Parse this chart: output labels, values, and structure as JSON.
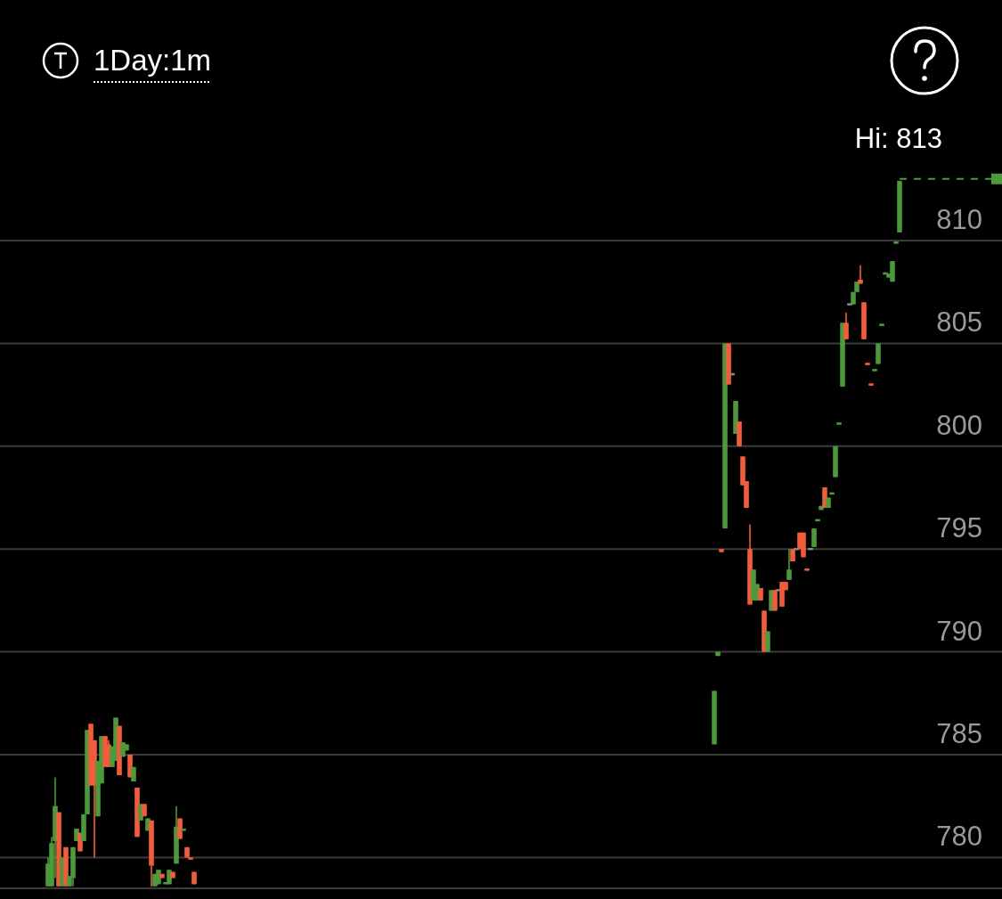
{
  "chart_data": {
    "type": "candlestick",
    "title": "1Day:1m",
    "ylim": [
      778.5,
      821.7
    ],
    "yticks": [
      780,
      785,
      790,
      795,
      800,
      805,
      810
    ],
    "grid": "y",
    "ref_lines": [
      {
        "axis": "y",
        "value": 813,
        "label": "Hi: 813",
        "color": "#4c9a3c",
        "line_style": "dashed"
      }
    ],
    "categories": [
      null,
      null,
      null,
      null,
      null,
      null,
      null,
      null,
      null,
      null,
      null,
      null,
      null,
      null,
      null,
      null,
      null,
      null,
      null,
      null,
      null,
      null,
      null,
      null,
      null,
      null,
      null,
      null,
      null,
      null,
      null,
      null,
      null,
      null,
      null,
      null,
      null,
      null,
      null,
      null,
      null,
      null,
      null,
      null,
      null,
      null,
      null,
      null,
      null,
      null,
      null,
      null,
      null,
      null,
      null,
      null,
      null,
      null,
      null,
      null,
      null,
      null,
      null,
      null,
      null,
      null,
      null,
      null,
      null,
      null,
      null,
      null,
      null,
      null,
      null,
      null,
      null,
      null,
      null,
      null,
      null,
      null,
      null,
      null,
      null,
      null,
      null,
      null,
      null,
      null,
      null,
      null,
      null,
      null,
      null,
      null,
      null,
      null,
      null,
      null,
      null,
      null,
      null,
      null,
      null,
      null,
      null,
      null,
      null,
      null,
      null,
      null,
      null,
      null,
      null,
      null,
      null,
      null,
      null,
      null,
      null,
      null,
      null,
      null,
      null,
      null,
      null,
      null,
      null,
      null,
      null,
      null,
      null,
      null,
      null,
      null,
      null,
      null,
      null,
      null,
      null,
      null,
      null,
      null,
      null,
      null,
      null,
      null,
      null,
      null,
      null,
      null,
      null,
      null,
      null,
      null,
      null,
      null,
      null,
      null,
      null,
      null,
      null,
      null,
      null,
      null,
      null,
      null,
      null,
      null,
      null,
      null,
      null,
      null,
      null,
      null,
      null,
      null,
      null,
      null,
      null,
      null,
      null,
      null,
      null,
      null,
      null,
      null,
      null,
      null,
      null,
      null,
      null,
      null,
      null,
      null,
      null,
      null,
      null,
      null,
      null,
      null,
      null,
      null,
      null,
      null,
      null,
      null,
      null,
      null,
      null,
      null,
      null,
      null,
      null,
      null,
      null,
      null,
      null,
      null,
      null,
      null,
      null,
      null,
      null,
      null,
      null,
      null,
      null,
      null,
      null,
      null,
      null,
      null,
      null,
      null,
      null,
      null,
      null,
      null,
      null,
      null,
      null,
      null,
      null,
      null,
      null,
      null,
      null,
      null,
      null,
      null,
      null,
      null,
      null,
      null,
      null,
      null,
      null,
      null,
      null,
      null,
      null,
      null,
      null,
      null,
      null,
      null,
      null,
      null,
      null,
      null,
      null,
      null,
      null,
      null,
      null,
      null,
      null,
      null,
      null
    ],
    "ohlc": [
      null,
      null,
      null,
      null,
      null,
      null,
      null,
      null,
      null,
      null,
      null,
      null,
      null,
      [
        778.6,
        780.0,
        778.6,
        779.7
      ],
      [
        778.6,
        781.0,
        778.6,
        780.7
      ],
      [
        780.8,
        783.9,
        779.0,
        782.5
      ],
      [
        782.2,
        782.2,
        778.6,
        778.6
      ],
      [
        778.6,
        780.0,
        778.6,
        780.0
      ],
      [
        780.5,
        780.5,
        778.6,
        778.6
      ],
      [
        778.6,
        779.1,
        778.6,
        779.1
      ],
      [
        779.0,
        780.5,
        778.6,
        780.5
      ],
      [
        780.8,
        781.4,
        780.8,
        781.4
      ],
      [
        781.2,
        781.2,
        780.3,
        780.3
      ],
      [
        780.8,
        782.1,
        780.8,
        782.1
      ],
      [
        782.1,
        786.2,
        782.1,
        786.2
      ],
      [
        786.5,
        786.5,
        783.5,
        783.5
      ],
      [
        785.7,
        785.7,
        780.0,
        783.5
      ],
      [
        782.0,
        784.7,
        782.0,
        784.7
      ],
      [
        783.6,
        785.9,
        783.6,
        785.9
      ],
      [
        785.9,
        785.9,
        784.4,
        784.4
      ],
      [
        785.5,
        785.7,
        784.4,
        784.4
      ],
      [
        784.4,
        785.4,
        784.4,
        785.4
      ],
      [
        784.7,
        786.8,
        784.7,
        786.8
      ],
      [
        786.4,
        786.4,
        784.0,
        784.0
      ],
      [
        784.9,
        785.6,
        784.9,
        785.6
      ],
      [
        785.2,
        785.5,
        785.2,
        785.5
      ],
      [
        785.0,
        785.0,
        783.9,
        783.9
      ],
      [
        783.7,
        784.4,
        783.7,
        784.4
      ],
      [
        783.4,
        783.4,
        781.0,
        781.0
      ],
      [
        781.8,
        782.6,
        781.8,
        782.6
      ],
      [
        782.6,
        782.6,
        782.0,
        782.0
      ],
      [
        781.3,
        781.9,
        781.3,
        781.9
      ],
      [
        781.8,
        781.8,
        778.6,
        779.6
      ],
      [
        778.6,
        779.2,
        778.6,
        779.2
      ],
      [
        778.7,
        779.4,
        778.7,
        779.4
      ],
      [
        779.2,
        779.2,
        779.0,
        779.0
      ],
      [
        778.7,
        778.8,
        778.7,
        778.8
      ],
      [
        778.7,
        779.4,
        778.7,
        779.4
      ],
      [
        779.3,
        779.3,
        779.0,
        779.0
      ],
      [
        779.7,
        782.5,
        779.7,
        781.5
      ],
      [
        781.9,
        781.9,
        780.9,
        780.9
      ],
      [
        781.3,
        781.4,
        781.3,
        781.4
      ],
      [
        780.5,
        780.5,
        780.0,
        780.0
      ],
      [
        780.0,
        780.0,
        779.9,
        779.9
      ],
      [
        779.3,
        779.3,
        778.7,
        778.7
      ],
      null,
      null,
      null,
      null,
      null,
      null,
      null,
      null,
      null,
      null,
      null,
      null,
      null,
      null,
      null,
      null,
      null,
      null,
      null,
      null,
      null,
      null,
      null,
      null,
      null,
      null,
      null,
      null,
      null,
      null,
      null,
      null,
      null,
      null,
      null,
      null,
      null,
      null,
      null,
      null,
      null,
      null,
      null,
      null,
      null,
      null,
      null,
      null,
      null,
      null,
      null,
      null,
      null,
      null,
      null,
      null,
      null,
      null,
      null,
      null,
      null,
      null,
      null,
      null,
      null,
      null,
      null,
      null,
      null,
      null,
      null,
      null,
      null,
      null,
      null,
      null,
      null,
      null,
      null,
      null,
      null,
      null,
      null,
      null,
      null,
      null,
      null,
      null,
      null,
      null,
      null,
      null,
      null,
      null,
      null,
      null,
      null,
      null,
      null,
      null,
      null,
      null,
      null,
      null,
      null,
      null,
      null,
      null,
      null,
      null,
      null,
      null,
      null,
      null,
      null,
      null,
      null,
      null,
      null,
      null,
      null,
      null,
      null,
      null,
      null,
      null,
      null,
      null,
      null,
      null,
      null,
      null,
      null,
      null,
      null,
      null,
      null,
      null,
      null,
      null,
      null,
      null,
      null,
      null,
      null,
      [
        785.5,
        788.1,
        785.5,
        788.1
      ],
      [
        789.8,
        790.0,
        789.8,
        790.0
      ],
      [
        795.0,
        795.0,
        794.85,
        794.85
      ],
      [
        796.0,
        805.0,
        796.0,
        805.0
      ],
      [
        805.0,
        805.0,
        803.0,
        803.0
      ],
      [
        803.5,
        803.5,
        803.5,
        803.5
      ],
      [
        800.6,
        802.2,
        800.6,
        802.2
      ],
      [
        801.2,
        801.2,
        800.0,
        800.0
      ],
      [
        799.5,
        799.5,
        798.1,
        798.1
      ],
      [
        798.3,
        798.3,
        797.0,
        797.0
      ],
      [
        795.0,
        796.2,
        792.3,
        792.3
      ],
      [
        792.5,
        794.0,
        792.5,
        794.0
      ],
      [
        792.5,
        793.3,
        792.5,
        793.3
      ],
      [
        793.1,
        793.1,
        792.5,
        792.5
      ],
      [
        792.0,
        792.0,
        790.0,
        790.0
      ],
      [
        790.0,
        791.0,
        790.0,
        791.0
      ],
      [
        792.0,
        793.0,
        792.0,
        793.0
      ],
      [
        793.0,
        793.0,
        792.0,
        792.0
      ],
      [
        793.0,
        793.0,
        793.0,
        793.0
      ],
      [
        793.4,
        793.4,
        792.2,
        792.2
      ],
      [
        793.4,
        793.4,
        793.0,
        793.0
      ],
      [
        793.5,
        795.0,
        793.5,
        794.0
      ],
      [
        795.0,
        795.0,
        794.4,
        794.4
      ],
      [
        795.0,
        795.0,
        795.0,
        795.0
      ],
      [
        795.8,
        795.8,
        795.0,
        795.0
      ],
      [
        795.8,
        795.8,
        794.6,
        794.6
      ],
      [
        794.05,
        794.05,
        793.95,
        793.95
      ],
      [
        795.0,
        795.0,
        795.0,
        795.0
      ],
      [
        795.1,
        796.0,
        795.1,
        796.0
      ],
      [
        796.35,
        796.45,
        796.35,
        796.45
      ],
      [
        796.9,
        797.1,
        796.9,
        797.1
      ],
      [
        798.0,
        798.0,
        797.0,
        797.0
      ],
      [
        797.0,
        797.5,
        797.0,
        797.5
      ],
      [
        797.65,
        797.75,
        797.65,
        797.75
      ],
      [
        798.5,
        800.0,
        798.5,
        800.0
      ],
      [
        801.05,
        801.15,
        801.05,
        801.15
      ],
      [
        802.9,
        806.0,
        802.9,
        806.0
      ],
      [
        806.0,
        806.5,
        805.2,
        805.2
      ],
      [
        806.9,
        806.9,
        806.9,
        806.9
      ],
      [
        806.9,
        807.5,
        806.9,
        807.5
      ],
      [
        807.5,
        808.0,
        807.5,
        808.0
      ],
      [
        808.1,
        808.8,
        807.9,
        807.9
      ],
      [
        807.0,
        807.0,
        805.2,
        805.2
      ],
      [
        804.05,
        804.05,
        803.95,
        803.95
      ],
      [
        803.05,
        803.05,
        802.95,
        802.95
      ],
      [
        803.65,
        803.75,
        803.65,
        803.75
      ],
      [
        804.0,
        805.0,
        804.0,
        805.0
      ],
      [
        805.85,
        805.95,
        805.85,
        805.95
      ],
      [
        808.35,
        808.45,
        808.35,
        808.45
      ],
      [
        808.2,
        808.4,
        808.2,
        808.4
      ],
      [
        808.0,
        809.0,
        808.0,
        809.0
      ],
      [
        809.85,
        809.95,
        809.85,
        809.95
      ],
      [
        810.4,
        812.9,
        810.4,
        812.9
      ],
      null,
      null,
      null,
      null,
      null,
      null,
      null,
      null,
      null,
      null,
      null,
      null,
      null,
      null,
      null,
      null,
      null,
      null,
      null,
      null,
      null,
      null,
      null,
      null,
      null,
      null,
      null,
      null
    ],
    "colors": [
      null,
      null,
      null,
      null,
      null,
      null,
      null,
      null,
      null,
      null,
      null,
      null,
      null,
      "#4c9a3c",
      "#4c9a3c",
      "#4c9a3c",
      "#f25c3b",
      "#4c9a3c",
      "#f25c3b",
      "#4c9a3c",
      "#4c9a3c",
      "#4c9a3c",
      "#f25c3b",
      "#4c9a3c",
      "#4c9a3c",
      "#f25c3b",
      "#f25c3b",
      "#4c9a3c",
      "#4c9a3c",
      "#f25c3b",
      "#f25c3b",
      "#4c9a3c",
      "#4c9a3c",
      "#f25c3b",
      "#4c9a3c",
      "#4c9a3c",
      "#f25c3b",
      "#4c9a3c",
      "#f25c3b",
      "#4c9a3c",
      "#f25c3b",
      "#4c9a3c",
      "#f25c3b",
      "#4c9a3c",
      "#4c9a3c",
      "#f25c3b",
      "#4c9a3c",
      "#4c9a3c",
      "#f25c3b",
      "#4c9a3c",
      "#f25c3b",
      "#4c9a3c",
      "#f25c3b",
      "#f25c3b",
      "#f25c3b",
      null,
      null,
      null,
      null,
      null,
      null,
      null,
      null,
      null,
      null,
      null,
      null,
      null,
      null,
      null,
      null,
      null,
      null,
      null,
      null,
      null,
      null,
      null,
      null,
      null,
      null,
      null,
      null,
      null,
      null,
      null,
      null,
      null,
      null,
      null,
      null,
      null,
      null,
      null,
      null,
      null,
      null,
      null,
      null,
      null,
      null,
      null,
      null,
      null,
      null,
      null,
      null,
      null,
      null,
      null,
      null,
      null,
      null,
      null,
      null,
      null,
      null,
      null,
      null,
      null,
      null,
      null,
      null,
      null,
      null,
      null,
      null,
      null,
      null,
      null,
      null,
      null,
      null,
      null,
      null,
      null,
      null,
      null,
      null,
      null,
      null,
      null,
      null,
      null,
      null,
      null,
      null,
      null,
      null,
      null,
      null,
      null,
      null,
      null,
      null,
      null,
      null,
      null,
      null,
      null,
      null,
      null,
      null,
      null,
      null,
      null,
      null,
      null,
      null,
      null,
      null,
      null,
      null,
      null,
      null,
      null,
      null,
      null,
      null,
      null,
      null,
      null,
      null,
      null,
      null,
      null,
      null,
      null,
      null,
      null,
      null,
      null,
      null,
      null,
      null,
      null,
      null,
      null,
      null,
      null,
      "#4c9a3c",
      "#4c9a3c",
      "#f25c3b",
      "#4c9a3c",
      "#f25c3b",
      "#8c8c8c",
      "#4c9a3c",
      "#f25c3b",
      "#f25c3b",
      "#f25c3b",
      "#f25c3b",
      "#4c9a3c",
      "#4c9a3c",
      "#f25c3b",
      "#f25c3b",
      "#4c9a3c",
      "#4c9a3c",
      "#f25c3b",
      "#8c8c8c",
      "#f25c3b",
      "#f25c3b",
      "#4c9a3c",
      "#f25c3b",
      "#8c8c8c",
      "#f25c3b",
      "#f25c3b",
      "#f25c3b",
      "#8c8c8c",
      "#4c9a3c",
      "#4c9a3c",
      "#4c9a3c",
      "#f25c3b",
      "#4c9a3c",
      "#4c9a3c",
      "#4c9a3c",
      "#4c9a3c",
      "#4c9a3c",
      "#f25c3b",
      "#8c8c8c",
      "#4c9a3c",
      "#4c9a3c",
      "#f25c3b",
      "#f25c3b",
      "#f25c3b",
      "#f25c3b",
      "#4c9a3c",
      "#4c9a3c",
      "#4c9a3c",
      "#4c9a3c",
      "#4c9a3c",
      "#4c9a3c",
      "#4c9a3c",
      "#4c9a3c",
      null,
      null,
      null,
      null,
      null,
      null,
      null,
      null,
      null,
      null,
      null,
      null,
      null,
      null,
      null,
      null,
      null,
      null,
      null,
      null,
      null,
      null,
      null,
      null,
      null,
      null,
      null,
      null
    ]
  }
}
